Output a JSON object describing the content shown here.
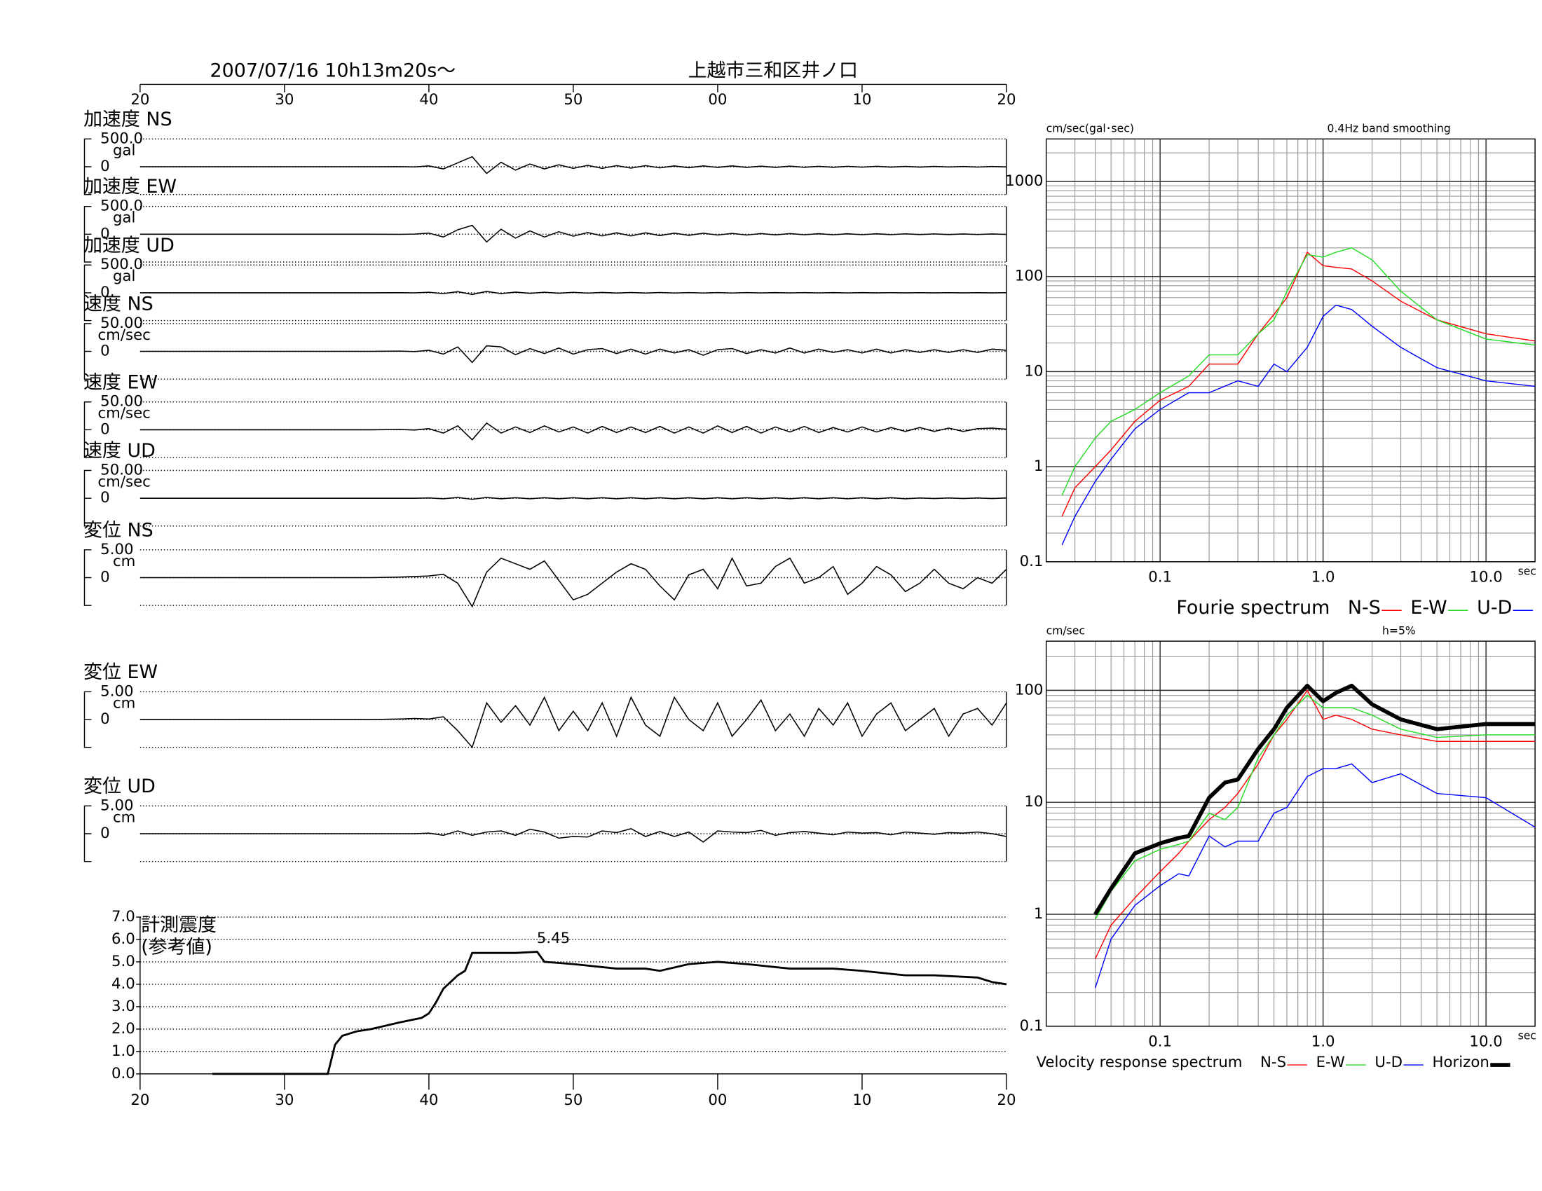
{
  "chart_data": [
    {
      "type": "waveforms",
      "title": "上越市三和区井ノ口",
      "subtitle": "2007/07/16  10h13m20s～",
      "xlim": [
        20,
        80
      ],
      "xticks": [
        20,
        30,
        40,
        50,
        {
          "value": 60,
          "label": "00"
        },
        {
          "value": 70,
          "label": "10"
        },
        {
          "value": 80,
          "label": "20"
        }
      ],
      "x": [
        20,
        36,
        38,
        39,
        40,
        41,
        42,
        43,
        44,
        45,
        46,
        47,
        48,
        49,
        50,
        51,
        52,
        53,
        54,
        55,
        56,
        57,
        58,
        59,
        60,
        61,
        62,
        63,
        64,
        65,
        66,
        67,
        68,
        69,
        70,
        71,
        72,
        73,
        74,
        75,
        76,
        77,
        78,
        79,
        80
      ],
      "series": [
        {
          "name": "加速度 NS",
          "unit": "gal",
          "color": "#000000",
          "ylim": [
            -500,
            500
          ],
          "yticks": [
            0,
            {
              "value": 500,
              "label": "500.0"
            }
          ],
          "values": [
            0,
            0,
            2,
            -3,
            15,
            -40,
            70,
            180,
            -120,
            80,
            -60,
            50,
            -40,
            35,
            -30,
            25,
            -30,
            20,
            -25,
            20,
            -20,
            15,
            -18,
            15,
            -12,
            15,
            -12,
            10,
            -12,
            10,
            -10,
            8,
            -10,
            8,
            -8,
            8,
            -7,
            6,
            -7,
            6,
            -5,
            5,
            -6,
            5,
            -4
          ]
        },
        {
          "name": "加速度 EW",
          "unit": "gal",
          "color": "#000000",
          "ylim": [
            -500,
            500
          ],
          "yticks": [
            0,
            {
              "value": 500,
              "label": "500.0"
            }
          ],
          "values": [
            0,
            0,
            -2,
            3,
            20,
            -50,
            80,
            160,
            -140,
            90,
            -70,
            60,
            -50,
            45,
            -35,
            30,
            -30,
            25,
            -30,
            25,
            -25,
            20,
            -20,
            18,
            -15,
            15,
            -15,
            12,
            -12,
            12,
            -10,
            10,
            -10,
            8,
            -8,
            8,
            -8,
            7,
            -6,
            6,
            -6,
            5,
            -5,
            5,
            -4
          ]
        },
        {
          "name": "加速度 UD",
          "unit": "gal",
          "color": "#000000",
          "ylim": [
            -500,
            500
          ],
          "yticks": [
            0,
            {
              "value": 500,
              "label": "500.0"
            }
          ],
          "values": [
            0,
            0,
            1,
            -1,
            10,
            -15,
            20,
            -30,
            25,
            -15,
            12,
            -10,
            10,
            -8,
            8,
            -6,
            6,
            -5,
            5,
            -5,
            5,
            -4,
            4,
            -4,
            4,
            -4,
            4,
            -3,
            3,
            -3,
            3,
            -3,
            3,
            -3,
            3,
            -2,
            2,
            -2,
            2,
            -2,
            2,
            -2,
            2,
            -2,
            2
          ]
        },
        {
          "name": "速度 NS",
          "unit": "cm/sec",
          "color": "#000000",
          "ylim": [
            -50,
            50
          ],
          "yticks": [
            0,
            {
              "value": 50,
              "label": "50.00"
            }
          ],
          "values": [
            0,
            0,
            0.5,
            -0.5,
            2,
            -5,
            8,
            -20,
            10,
            8,
            -6,
            5,
            -4,
            6,
            -5,
            3,
            5,
            -4,
            4,
            -5,
            4,
            -3,
            3,
            -7,
            3,
            5,
            -4,
            3,
            -3,
            6,
            -3,
            4,
            -2,
            3,
            -3,
            4,
            -3,
            3,
            -2,
            3,
            -2,
            3,
            -2,
            4,
            2
          ]
        },
        {
          "name": "速度 EW",
          "unit": "cm/sec",
          "color": "#000000",
          "ylim": [
            -50,
            50
          ],
          "yticks": [
            0,
            {
              "value": 50,
              "label": "50.00"
            }
          ],
          "values": [
            0,
            0,
            0.5,
            -0.5,
            2,
            -6,
            7,
            -18,
            12,
            -6,
            5,
            -5,
            7,
            -4,
            5,
            -6,
            6,
            -5,
            5,
            -5,
            6,
            -6,
            5,
            -6,
            7,
            -5,
            6,
            -6,
            5,
            -4,
            6,
            -5,
            4,
            -4,
            5,
            -4,
            4,
            -3,
            4,
            -3,
            3,
            -3,
            2,
            3,
            1
          ]
        },
        {
          "name": "速度 UD",
          "unit": "cm/sec",
          "color": "#000000",
          "ylim": [
            -50,
            50
          ],
          "yticks": [
            0,
            {
              "value": 50,
              "label": "50.00"
            }
          ],
          "values": [
            0,
            0,
            0,
            0,
            0.5,
            -1,
            1.5,
            -2,
            1.5,
            -1,
            1,
            -1,
            1,
            -1,
            1,
            -1,
            1,
            -1,
            1,
            -1,
            1,
            -1,
            1,
            -1,
            1,
            -1,
            1,
            -1,
            1,
            -1,
            1,
            -1,
            1,
            -1,
            1,
            -1,
            1,
            -1,
            0.5,
            -0.5,
            0.5,
            -0.5,
            0.5,
            -0.5,
            0.5
          ]
        },
        {
          "name": "変位 NS",
          "unit": "cm",
          "color": "#000000",
          "ylim": [
            -5,
            5
          ],
          "yticks": [
            0,
            {
              "value": 5,
              "label": "5.00"
            }
          ],
          "values": [
            0,
            0,
            0.1,
            0.2,
            0.3,
            0.6,
            -1,
            -5.2,
            1,
            3.5,
            2.5,
            1.5,
            3,
            -0.5,
            -4,
            -3,
            -1,
            1,
            2.5,
            1.5,
            -1.5,
            -4,
            0.5,
            1.5,
            -2,
            3.5,
            -1.5,
            -1,
            2,
            3.5,
            -1,
            0,
            2,
            -3,
            -1,
            2,
            0.5,
            -2.5,
            -1,
            1.5,
            -1,
            -2,
            0,
            -1,
            1.5
          ]
        },
        {
          "name": "変位 EW",
          "unit": "cm",
          "color": "#000000",
          "ylim": [
            -5,
            5
          ],
          "yticks": [
            0,
            {
              "value": 5,
              "label": "5.00"
            }
          ],
          "values": [
            0,
            0,
            0.1,
            0.2,
            0.1,
            0.5,
            -2,
            -5,
            3,
            -0.5,
            2.5,
            -1,
            4,
            -2,
            1.5,
            -2,
            3,
            -3,
            4,
            -1,
            -3,
            4,
            0,
            -2,
            3,
            -3,
            0,
            3.5,
            -2,
            1,
            -3,
            2,
            -1,
            3,
            -3,
            1,
            3,
            -2,
            0,
            2,
            -3,
            1,
            2,
            -1,
            3
          ]
        },
        {
          "name": "変位 UD",
          "unit": "cm",
          "color": "#000000",
          "ylim": [
            -5,
            5
          ],
          "yticks": [
            0,
            {
              "value": 5,
              "label": "5.00"
            }
          ],
          "values": [
            0,
            0,
            0,
            0,
            0.1,
            -0.3,
            0.5,
            -0.3,
            0.3,
            0.5,
            -0.3,
            0.8,
            0.3,
            -0.8,
            -0.5,
            -0.6,
            0.5,
            0.2,
            0.9,
            -0.5,
            0.4,
            -0.5,
            0.3,
            -1.5,
            0.5,
            0.3,
            0.2,
            0.6,
            -0.3,
            0.2,
            0.4,
            0.1,
            -0.2,
            0.3,
            0.1,
            0.2,
            -0.2,
            0.3,
            0.1,
            -0.1,
            0.2,
            0.1,
            0.3,
            0,
            -0.5
          ]
        }
      ]
    },
    {
      "type": "line",
      "title": "計測震度",
      "subtitle": "(参考値)",
      "annotation": "5.45",
      "color": "#000000",
      "xlim": [
        20,
        80
      ],
      "xticks": [
        20,
        30,
        40,
        50,
        {
          "value": 60,
          "label": "00"
        },
        {
          "value": 70,
          "label": "10"
        },
        {
          "value": 80,
          "label": "20"
        }
      ],
      "ylim": [
        0,
        7
      ],
      "yticks": [
        {
          "value": 0,
          "label": "0.0"
        },
        {
          "value": 1,
          "label": "1.0"
        },
        {
          "value": 2,
          "label": "2.0"
        },
        {
          "value": 3,
          "label": "3.0"
        },
        {
          "value": 4,
          "label": "4.0"
        },
        {
          "value": 5,
          "label": "5.0"
        },
        {
          "value": 6,
          "label": "6.0"
        },
        {
          "value": 7,
          "label": "7.0"
        }
      ],
      "grid": true,
      "x": [
        25,
        33,
        33.5,
        34,
        35,
        36,
        38,
        39.5,
        40,
        40.5,
        41,
        42,
        42.5,
        43,
        44,
        46,
        47.5,
        48,
        50,
        53,
        55,
        56,
        58,
        60,
        62,
        65,
        68,
        70,
        73,
        75,
        78,
        79,
        80
      ],
      "values": [
        0,
        0,
        1.3,
        1.7,
        1.9,
        2.0,
        2.3,
        2.5,
        2.7,
        3.2,
        3.8,
        4.4,
        4.6,
        5.4,
        5.4,
        5.4,
        5.45,
        5.0,
        4.9,
        4.7,
        4.7,
        4.6,
        4.9,
        5.0,
        4.9,
        4.7,
        4.7,
        4.6,
        4.4,
        4.4,
        4.3,
        4.1,
        4.0
      ]
    },
    {
      "type": "loglog",
      "title": "Fourie spectrum",
      "ylabel": "cm/sec(gal･sec)",
      "xlabel": "sec",
      "annotation": "0.4Hz band smoothing",
      "log": true,
      "grid": true,
      "xlim": [
        0.02,
        20
      ],
      "xticks": [
        0.1,
        {
          "value": 1,
          "label": "1.0"
        },
        {
          "value": 10,
          "label": "10.0"
        }
      ],
      "ylim": [
        0.1,
        2800
      ],
      "yticks": [
        0.1,
        1,
        10,
        100,
        1000
      ],
      "x": [
        0.025,
        0.03,
        0.04,
        0.05,
        0.07,
        0.1,
        0.15,
        0.2,
        0.3,
        0.4,
        0.5,
        0.6,
        0.8,
        1,
        1.2,
        1.5,
        2,
        3,
        5,
        10,
        20
      ],
      "series": [
        {
          "name": "N-S",
          "color": "#ff0000",
          "width": 1,
          "values": [
            0.3,
            0.6,
            1,
            1.5,
            3,
            5,
            7,
            12,
            12,
            25,
            40,
            60,
            180,
            130,
            125,
            120,
            90,
            55,
            35,
            25,
            21
          ]
        },
        {
          "name": "E-W",
          "color": "#22dd22",
          "width": 1,
          "values": [
            0.5,
            1,
            2,
            3,
            4,
            6,
            9,
            15,
            15,
            25,
            35,
            70,
            170,
            160,
            180,
            200,
            150,
            70,
            35,
            22,
            19
          ]
        },
        {
          "name": "U-D",
          "color": "#0000ff",
          "width": 1,
          "values": [
            0.15,
            0.3,
            0.7,
            1.2,
            2.5,
            4,
            6,
            6,
            8,
            7,
            12,
            10,
            18,
            38,
            50,
            45,
            30,
            18,
            11,
            8,
            7
          ]
        }
      ]
    },
    {
      "type": "loglog",
      "title": "Velocity response spectrum",
      "ylabel": "cm/sec",
      "xlabel": "sec",
      "annotation": "h=5%",
      "log": true,
      "grid": true,
      "xlim": [
        0.02,
        20
      ],
      "xticks": [
        0.1,
        {
          "value": 1,
          "label": "1.0"
        },
        {
          "value": 10,
          "label": "10.0"
        }
      ],
      "ylim": [
        0.1,
        275
      ],
      "yticks": [
        0.1,
        1,
        10,
        100
      ],
      "x": [
        0.04,
        0.05,
        0.07,
        0.1,
        0.13,
        0.15,
        0.2,
        0.25,
        0.3,
        0.4,
        0.5,
        0.6,
        0.8,
        1,
        1.2,
        1.5,
        2,
        3,
        5,
        10,
        20
      ],
      "series": [
        {
          "name": "N-S",
          "color": "#ff0000",
          "width": 1,
          "values": [
            0.4,
            0.8,
            1.4,
            2.4,
            3.5,
            4.5,
            7,
            9,
            12,
            22,
            40,
            55,
            100,
            55,
            60,
            55,
            45,
            40,
            35,
            35,
            35
          ]
        },
        {
          "name": "E-W",
          "color": "#22dd22",
          "width": 1,
          "values": [
            0.9,
            1.6,
            3,
            3.8,
            4.2,
            4.5,
            8,
            7,
            9,
            25,
            40,
            60,
            90,
            70,
            70,
            70,
            60,
            45,
            38,
            40,
            40
          ]
        },
        {
          "name": "U-D",
          "color": "#0000ff",
          "width": 1,
          "values": [
            0.22,
            0.6,
            1.2,
            1.8,
            2.3,
            2.2,
            5,
            4,
            4.5,
            4.5,
            8,
            9,
            17,
            20,
            20,
            22,
            15,
            18,
            12,
            11,
            6
          ]
        },
        {
          "name": "Horizon",
          "color": "#000000",
          "width": 4,
          "values": [
            1.0,
            1.7,
            3.5,
            4.3,
            4.8,
            5,
            11,
            15,
            16,
            30,
            45,
            70,
            110,
            80,
            95,
            110,
            75,
            55,
            45,
            50,
            50
          ]
        }
      ]
    }
  ]
}
